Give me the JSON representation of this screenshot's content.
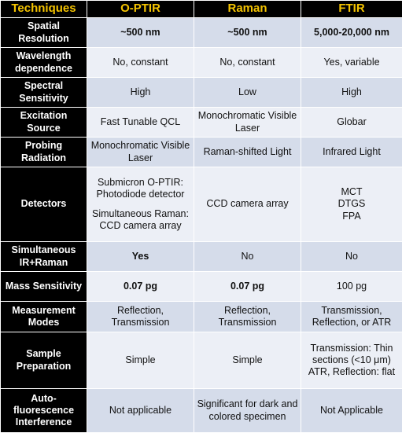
{
  "headers": [
    "Techniques",
    "O-PTIR",
    "Raman",
    "FTIR"
  ],
  "rows": [
    {
      "label": "Spatial Resolution",
      "cells": [
        {
          "text": "~500 nm",
          "green": true,
          "bold": true
        },
        {
          "text": "~500 nm",
          "bold": true
        },
        {
          "text": "5,000-20,000 nm",
          "bold": true
        }
      ]
    },
    {
      "label": "Wavelength dependence",
      "cells": [
        {
          "text": "No, constant",
          "green": true
        },
        {
          "text": "No, constant",
          "green": true
        },
        {
          "text": "Yes, variable"
        }
      ]
    },
    {
      "label": "Spectral Sensitivity",
      "cells": [
        {
          "text": "High",
          "green": true
        },
        {
          "text": "Low"
        },
        {
          "text": "High",
          "green": true
        }
      ]
    },
    {
      "label": "Excitation Source",
      "cells": [
        {
          "text": "Fast Tunable QCL"
        },
        {
          "text": "Monochromatic Visible Laser"
        },
        {
          "text": "Globar"
        }
      ]
    },
    {
      "label": "Probing Radiation",
      "cells": [
        {
          "text": "Monochromatic Visible Laser"
        },
        {
          "text": "Raman-shifted Light"
        },
        {
          "text": "Infrared Light"
        }
      ]
    },
    {
      "label": "Detectors",
      "cells": [
        {
          "text": "Submicron O-PTIR: Photodiode detector",
          "text2": "Simultaneous Raman: CCD camera array"
        },
        {
          "text": "CCD camera array"
        },
        {
          "lines": [
            "MCT",
            "DTGS",
            "FPA"
          ]
        }
      ]
    },
    {
      "label": "Simultaneous IR+Raman",
      "cells": [
        {
          "text": "Yes",
          "green": true,
          "bold": true
        },
        {
          "text": "No"
        },
        {
          "text": "No"
        }
      ]
    },
    {
      "label": "Mass Sensitivity",
      "cells": [
        {
          "text": "0.07 pg",
          "green": true,
          "bold": true
        },
        {
          "text": "0.07 pg",
          "green": true,
          "bold": true
        },
        {
          "text": "100 pg"
        }
      ]
    },
    {
      "label": "Measurement Modes",
      "cells": [
        {
          "text": "Reflection, Transmission"
        },
        {
          "text": "Reflection, Transmission"
        },
        {
          "text": "Transmission, Reflection, or ATR"
        }
      ]
    },
    {
      "label": "Sample Preparation",
      "cells": [
        {
          "text": "Simple",
          "green": true
        },
        {
          "text": "Simple",
          "green": true
        },
        {
          "text": "Transmission: Thin sections (<10 μm) ATR, Reflection: flat"
        }
      ]
    },
    {
      "label": "Auto-fluorescence Interference",
      "cells": [
        {
          "text": "Not applicable",
          "green": true
        },
        {
          "text": "Significant for dark and colored specimen"
        },
        {
          "text": "Not Applicable"
        }
      ]
    }
  ],
  "colors": {
    "header_bg": "#000000",
    "header_text": "#f5c400",
    "rowhead_bg": "#000000",
    "rowhead_text": "#ffffff",
    "band_dark": "#d5dcea",
    "band_light": "#eceff6",
    "highlight_green": "#3cc43c"
  }
}
